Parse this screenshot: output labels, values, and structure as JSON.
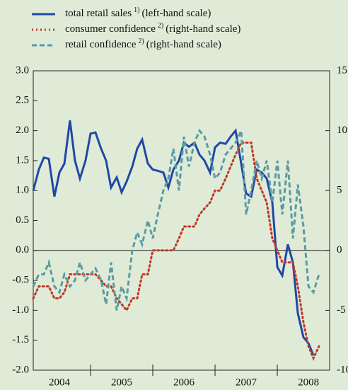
{
  "chart_data": {
    "type": "line",
    "xlim": [
      2004.08,
      2008.84
    ],
    "xticks": [
      {
        "value": 2004.5,
        "label": "2004"
      },
      {
        "value": 2005.5,
        "label": "2005"
      },
      {
        "value": 2006.5,
        "label": "2006"
      },
      {
        "value": 2007.5,
        "label": "2007"
      },
      {
        "value": 2008.5,
        "label": "2008"
      }
    ],
    "x_boundaries": [
      2005,
      2006,
      2007,
      2008
    ],
    "ylim": [
      -2,
      3
    ],
    "yticks": [
      {
        "value": -2,
        "label": "-2.0"
      },
      {
        "value": -1.5,
        "label": "-1.5"
      },
      {
        "value": -1,
        "label": "-1.0"
      },
      {
        "value": -0.5,
        "label": "-0.5"
      },
      {
        "value": 0,
        "label": "0.0"
      },
      {
        "value": 0.5,
        "label": "0.5"
      },
      {
        "value": 1,
        "label": "1.0"
      },
      {
        "value": 1.5,
        "label": "1.5"
      },
      {
        "value": 2,
        "label": "2.0"
      },
      {
        "value": 2.5,
        "label": "2.5"
      },
      {
        "value": 3,
        "label": "3.0"
      }
    ],
    "y2lim": [
      -10,
      15
    ],
    "y2ticks": [
      -10,
      -5,
      0,
      5,
      10,
      15
    ],
    "x": [
      2004.08,
      2004.17,
      2004.25,
      2004.33,
      2004.42,
      2004.5,
      2004.58,
      2004.67,
      2004.75,
      2004.83,
      2004.92,
      2005.0,
      2005.08,
      2005.17,
      2005.25,
      2005.33,
      2005.42,
      2005.5,
      2005.58,
      2005.67,
      2005.75,
      2005.83,
      2005.92,
      2006.0,
      2006.08,
      2006.17,
      2006.25,
      2006.33,
      2006.42,
      2006.5,
      2006.58,
      2006.67,
      2006.75,
      2006.83,
      2006.92,
      2007.0,
      2007.08,
      2007.17,
      2007.25,
      2007.33,
      2007.42,
      2007.5,
      2007.58,
      2007.67,
      2007.75,
      2007.83,
      2007.92,
      2008.0,
      2008.08,
      2008.17,
      2008.25,
      2008.33,
      2008.42,
      2008.5,
      2008.58,
      2008.67
    ],
    "series": [
      {
        "name": "total retail sales",
        "footnote": "1)",
        "scale_note": "(left-hand scale)",
        "color": "#1f48a6",
        "style": "solid",
        "values": [
          1.0,
          1.35,
          1.55,
          1.53,
          0.9,
          1.3,
          1.45,
          2.17,
          1.5,
          1.2,
          1.5,
          1.95,
          1.97,
          1.7,
          1.5,
          1.05,
          1.22,
          0.97,
          1.15,
          1.4,
          1.7,
          1.85,
          1.45,
          1.35,
          1.33,
          1.3,
          1.05,
          1.35,
          1.5,
          1.8,
          1.73,
          1.8,
          1.6,
          1.5,
          1.3,
          1.72,
          1.8,
          1.78,
          1.9,
          2.0,
          1.45,
          0.95,
          0.9,
          1.35,
          1.3,
          1.2,
          0.8,
          -0.28,
          -0.42,
          0.1,
          -0.2,
          -1.05,
          -1.45,
          -1.55,
          -1.75,
          null
        ]
      },
      {
        "name": "consumer confidence",
        "footnote": "2)",
        "scale_note": "(right-hand scale)",
        "color": "#c0392b",
        "style": "dotted",
        "axis": "y2",
        "values": [
          -4,
          -3,
          -3,
          -3,
          -4,
          -4,
          -3.5,
          -2,
          -2,
          -2,
          -2,
          -2,
          -2,
          -2.5,
          -3,
          -3,
          -4,
          -4.5,
          -5,
          -4,
          -4,
          -2,
          -2,
          0,
          0,
          0,
          0,
          0,
          1,
          2,
          2,
          2,
          3,
          3.5,
          4,
          5,
          5,
          6,
          7,
          8,
          9,
          9,
          9,
          6,
          5,
          4,
          1,
          0,
          -1,
          -1,
          -1,
          -3,
          -6,
          -8,
          -9,
          -8
        ]
      },
      {
        "name": "retail confidence",
        "footnote": "2)",
        "scale_note": "(right-hand scale)",
        "color": "#5b9aa6",
        "style": "dashed",
        "axis": "y2",
        "values": [
          -3,
          -2,
          -2,
          -1,
          -3,
          -3.5,
          -2,
          -3,
          -2.5,
          -1,
          -2.5,
          -2,
          -1.5,
          -2.5,
          -4.5,
          -1,
          -5,
          -3,
          -4,
          0,
          1.5,
          0.5,
          2.5,
          1,
          3,
          5,
          6,
          8.5,
          5,
          9.5,
          7,
          9,
          10,
          9.5,
          8,
          6,
          6.5,
          8,
          8.5,
          9,
          10,
          3,
          5,
          7.5,
          6,
          7.5,
          4,
          7.5,
          3,
          7.5,
          1,
          5.5,
          2,
          -3,
          -3.5,
          -2
        ]
      }
    ]
  }
}
